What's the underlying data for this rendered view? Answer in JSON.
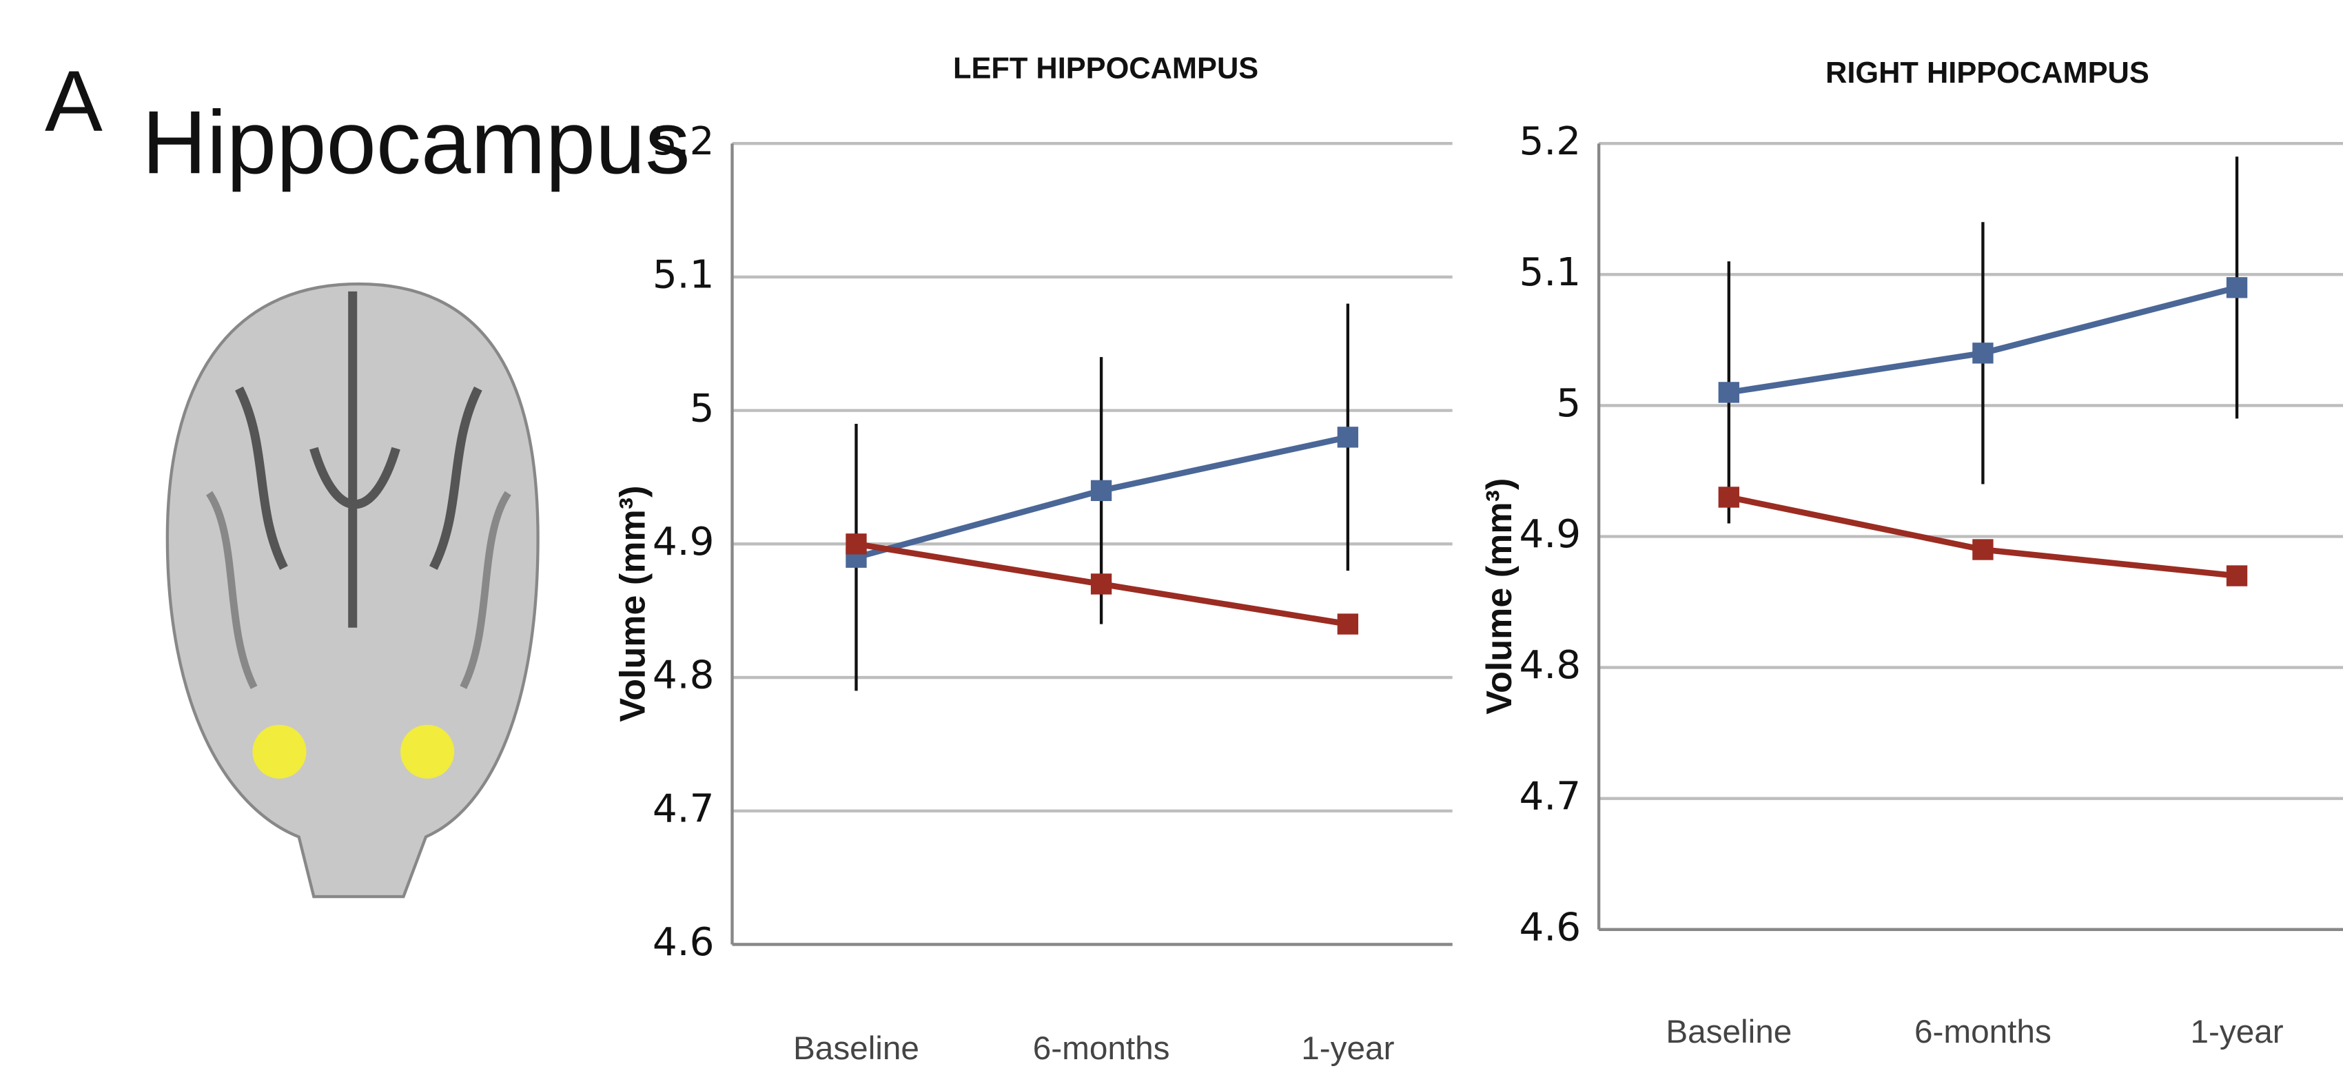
{
  "label": "A",
  "heading": "Hippocampus",
  "chart_data": [
    {
      "type": "line",
      "title": "LEFT HIPPOCAMPUS",
      "ylabel": "Volume (mm³)",
      "categories": [
        "Baseline",
        "6-months",
        "1-year"
      ],
      "ylim": [
        4.6,
        5.2
      ],
      "yticks": [
        4.6,
        4.7,
        4.8,
        4.9,
        5,
        5.1,
        5.2
      ],
      "grid": true,
      "series": [
        {
          "color": "#4a6797",
          "values": [
            4.89,
            4.94,
            4.98
          ],
          "errors": [
            0.1,
            0.1,
            0.1
          ]
        },
        {
          "color": "#9b2c22",
          "values": [
            4.9,
            4.87,
            4.84
          ]
        }
      ]
    },
    {
      "type": "line",
      "title": "RIGHT HIPPOCAMPUS",
      "ylabel": "Volume (mm³)",
      "categories": [
        "Baseline",
        "6-months",
        "1-year"
      ],
      "ylim": [
        4.6,
        5.2
      ],
      "yticks": [
        4.6,
        4.7,
        4.8,
        4.9,
        5,
        5.1,
        5.2
      ],
      "grid": true,
      "series": [
        {
          "color": "#4a6797",
          "values": [
            5.01,
            5.04,
            5.09
          ],
          "errors": [
            0.1,
            0.1,
            0.1
          ]
        },
        {
          "color": "#9b2c22",
          "values": [
            4.93,
            4.89,
            4.87
          ]
        }
      ]
    }
  ]
}
